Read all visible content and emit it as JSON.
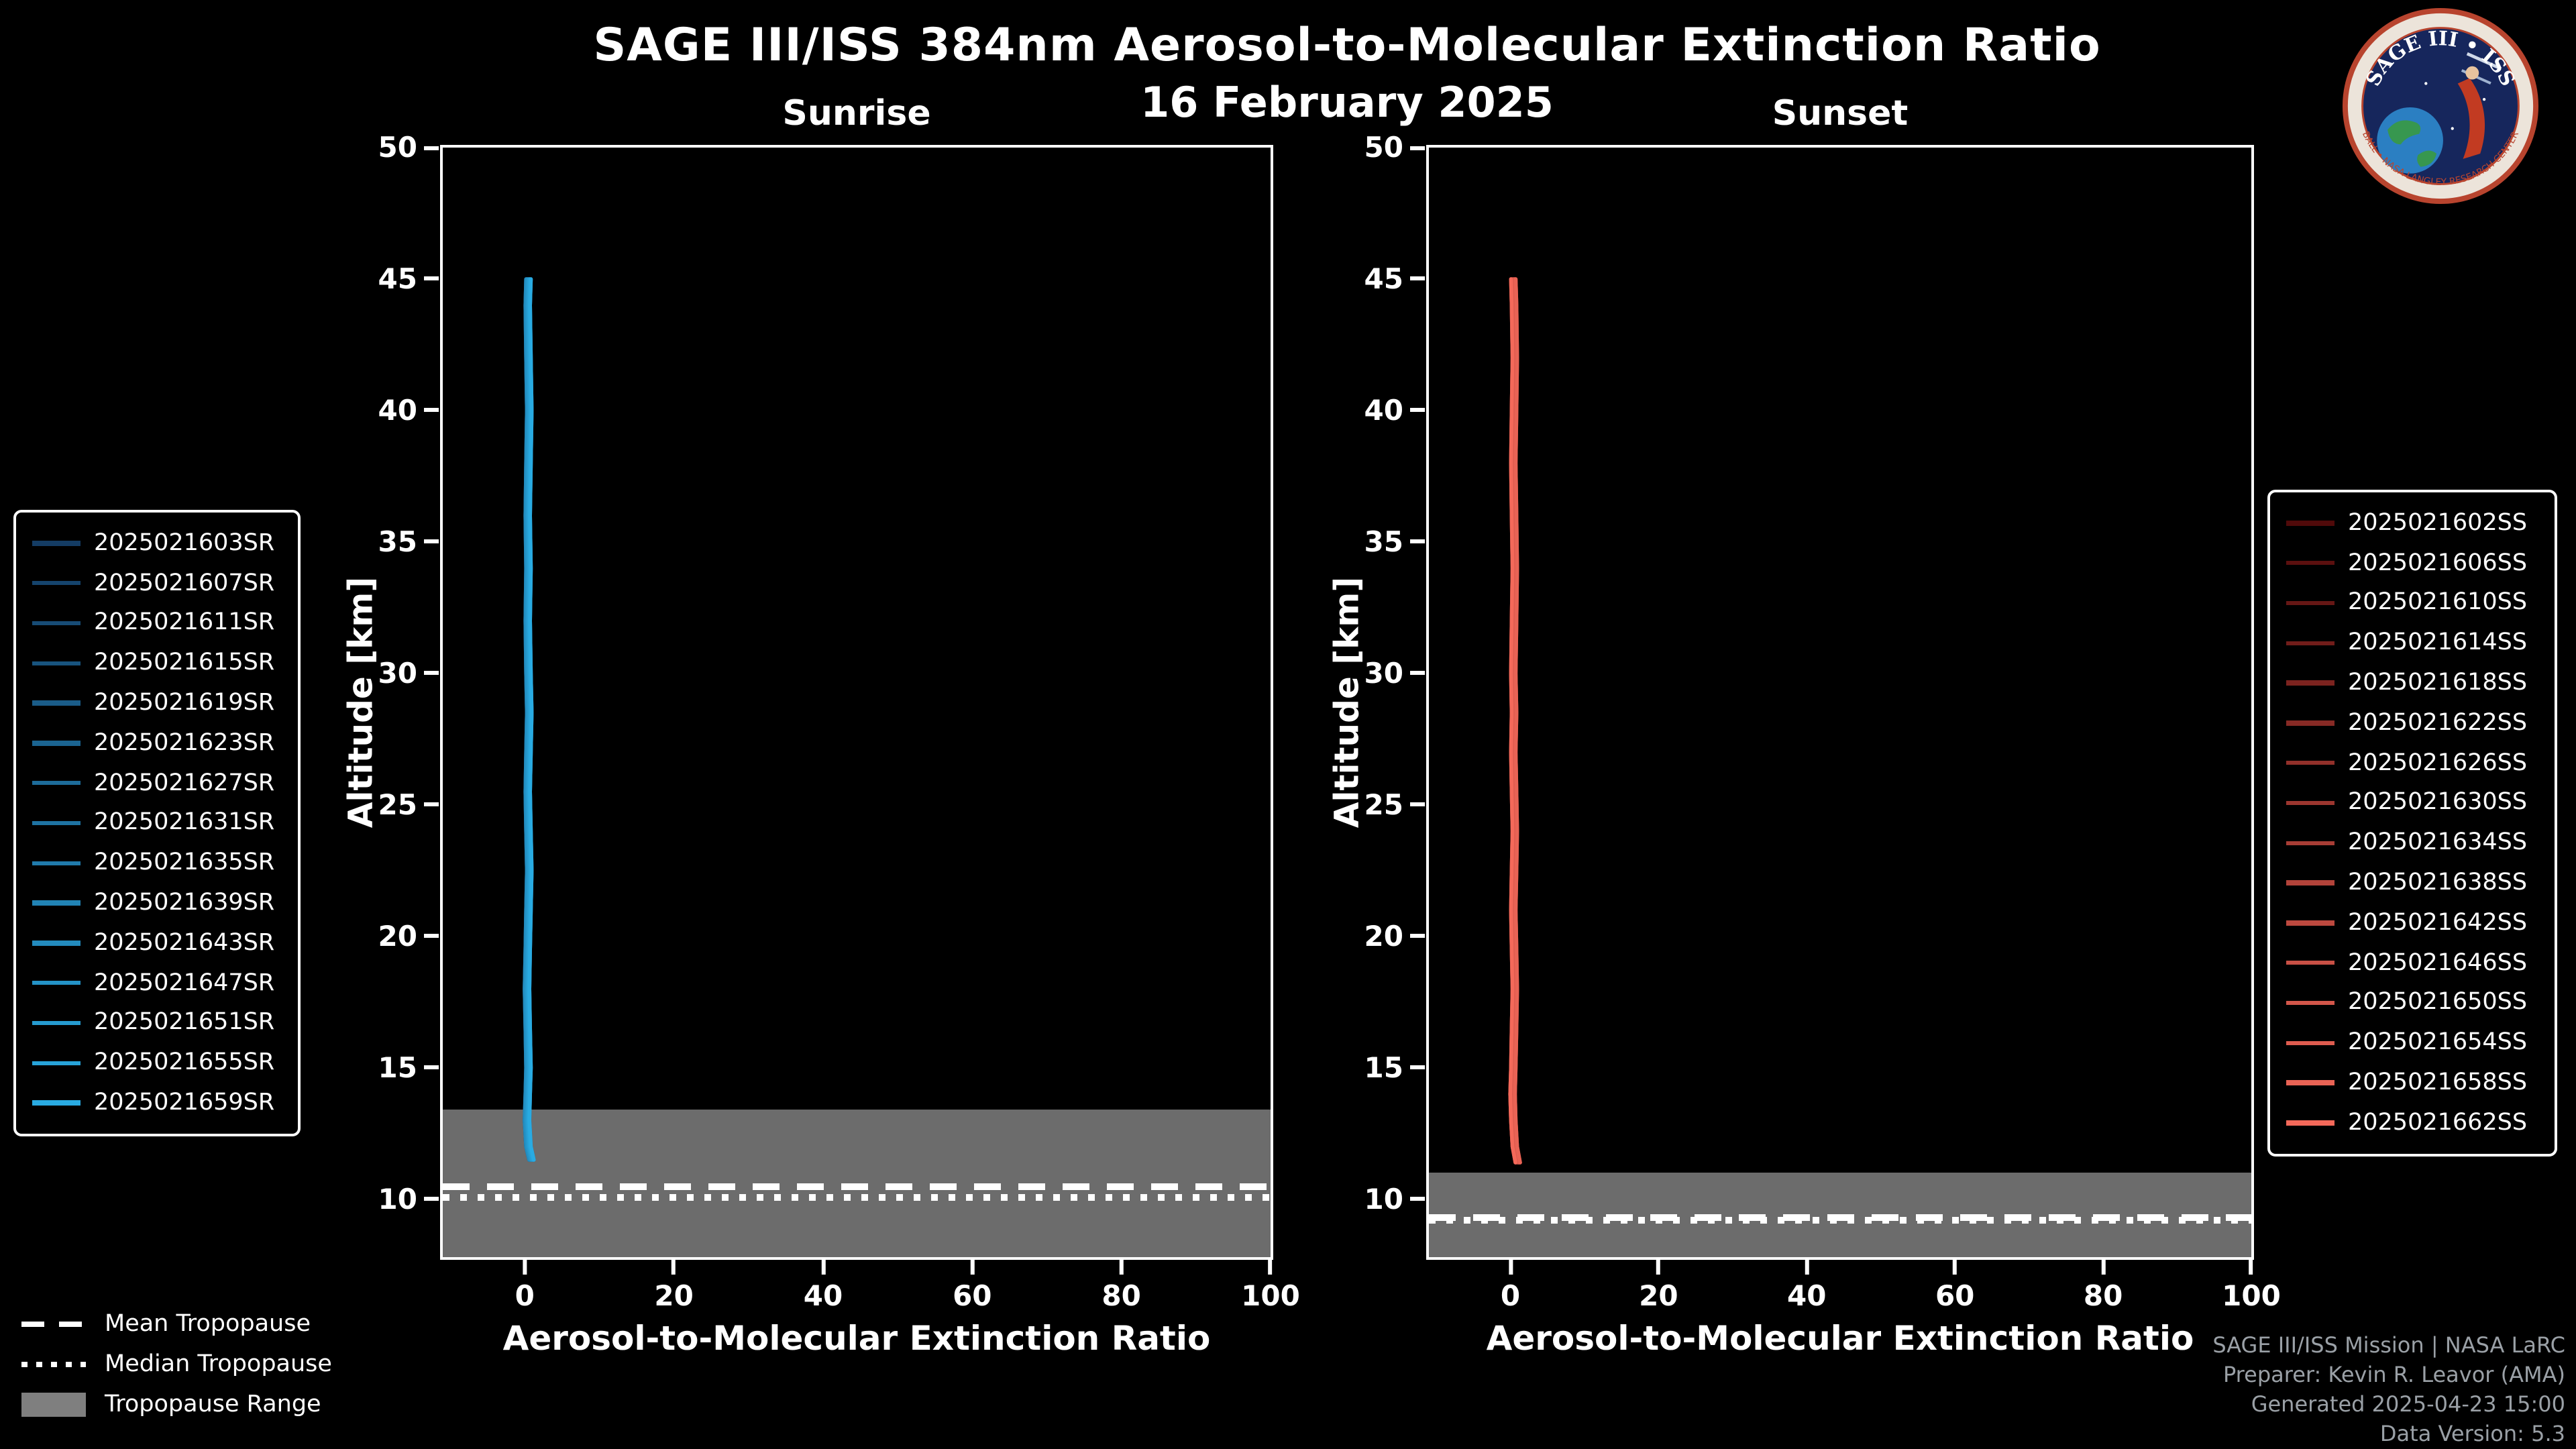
{
  "header": {
    "title": "SAGE III/ISS 384nm Aerosol-to-Molecular Extinction Ratio",
    "date": "16 February 2025"
  },
  "logo": {
    "title": "SAGE III • ISS",
    "ring_text": "BALL • NASA LANGLEY RESEARCH CENTER"
  },
  "colors": {
    "background": "#000000",
    "foreground": "#ffffff",
    "sunrise_line": "#29abe2",
    "sunset_line": "#f4695a",
    "tropopause_band": "#7f7f7f",
    "annotation_text": "#9aa0a6"
  },
  "tropopause_legend": {
    "mean_label": "Mean Tropopause",
    "median_label": "Median Tropopause",
    "range_label": "Tropopause Range"
  },
  "annotations": [
    "SAGE III/ISS Mission | NASA LaRC",
    "Preparer: Kevin R. Leavor (AMA)",
    "Generated 2025-04-23 15:00",
    "Data Version: 5.3"
  ],
  "chart_data": [
    {
      "type": "line",
      "title": "Sunrise",
      "xlabel": "Aerosol-to-Molecular Extinction Ratio",
      "ylabel": "Altitude [km]",
      "xlim": [
        -11,
        100
      ],
      "ylim": [
        7.8,
        50
      ],
      "xticks": [
        0,
        20,
        40,
        60,
        80,
        100
      ],
      "yticks": [
        10,
        15,
        20,
        25,
        30,
        35,
        40,
        45,
        50
      ],
      "grid": false,
      "legend_position": "outside-left",
      "events": [
        {
          "id": "2025021603SR",
          "color": "#143c64"
        },
        {
          "id": "2025021607SR",
          "color": "#15446d"
        },
        {
          "id": "2025021611SR",
          "color": "#174c76"
        },
        {
          "id": "2025021615SR",
          "color": "#18547f"
        },
        {
          "id": "2025021619SR",
          "color": "#1a5c88"
        },
        {
          "id": "2025021623SR",
          "color": "#1b6491"
        },
        {
          "id": "2025021627SR",
          "color": "#1d6c9a"
        },
        {
          "id": "2025021631SR",
          "color": "#1e73a3"
        },
        {
          "id": "2025021635SR",
          "color": "#207bac"
        },
        {
          "id": "2025021639SR",
          "color": "#2183b5"
        },
        {
          "id": "2025021643SR",
          "color": "#238bbe"
        },
        {
          "id": "2025021647SR",
          "color": "#2493c7"
        },
        {
          "id": "2025021651SR",
          "color": "#269bd0"
        },
        {
          "id": "2025021655SR",
          "color": "#27a3d9"
        },
        {
          "id": "2025021659SR",
          "color": "#29abe2"
        }
      ],
      "profile": {
        "altitude_km": [
          11.5,
          12,
          13,
          14,
          15,
          16.5,
          18,
          19.5,
          21,
          22.5,
          24,
          25.5,
          27,
          28.5,
          30,
          32,
          34,
          36,
          38,
          40,
          42,
          44,
          45
        ],
        "ratio": [
          0.9,
          0.5,
          0.3,
          0.4,
          0.5,
          0.4,
          0.3,
          0.4,
          0.5,
          0.6,
          0.5,
          0.4,
          0.5,
          0.6,
          0.5,
          0.4,
          0.5,
          0.4,
          0.5,
          0.6,
          0.5,
          0.4,
          0.5
        ]
      },
      "tropopause": {
        "mean_km": 10.5,
        "median_km": 10.05,
        "range_km": [
          7.8,
          13.4
        ]
      }
    },
    {
      "type": "line",
      "title": "Sunset",
      "xlabel": "Aerosol-to-Molecular Extinction Ratio",
      "ylabel": "Altitude [km]",
      "xlim": [
        -11,
        100
      ],
      "ylim": [
        7.8,
        50
      ],
      "xticks": [
        0,
        20,
        40,
        60,
        80,
        100
      ],
      "yticks": [
        10,
        15,
        20,
        25,
        30,
        35,
        40,
        45,
        50
      ],
      "grid": false,
      "legend_position": "outside-right",
      "events": [
        {
          "id": "2025021602SS",
          "color": "#500a0a"
        },
        {
          "id": "2025021606SS",
          "color": "#5b100f"
        },
        {
          "id": "2025021610SS",
          "color": "#661715"
        },
        {
          "id": "2025021614SS",
          "color": "#711d1a"
        },
        {
          "id": "2025021618SS",
          "color": "#7c231f"
        },
        {
          "id": "2025021622SS",
          "color": "#872a25"
        },
        {
          "id": "2025021626SS",
          "color": "#92302a"
        },
        {
          "id": "2025021630SS",
          "color": "#9c362f"
        },
        {
          "id": "2025021634SS",
          "color": "#a73d35"
        },
        {
          "id": "2025021638SS",
          "color": "#b2433a"
        },
        {
          "id": "2025021642SS",
          "color": "#bd493f"
        },
        {
          "id": "2025021646SS",
          "color": "#c85045"
        },
        {
          "id": "2025021650SS",
          "color": "#d3564a"
        },
        {
          "id": "2025021654SS",
          "color": "#de5c4f"
        },
        {
          "id": "2025021658SS",
          "color": "#e96355"
        },
        {
          "id": "2025021662SS",
          "color": "#f4695a"
        }
      ],
      "profile": {
        "altitude_km": [
          11.4,
          12,
          13,
          14,
          15,
          16.5,
          18,
          19.5,
          21,
          22.5,
          24,
          25.5,
          27,
          28.5,
          30,
          32,
          34,
          36,
          38,
          40,
          42,
          44,
          45
        ],
        "ratio": [
          1.0,
          0.6,
          0.4,
          0.3,
          0.4,
          0.5,
          0.6,
          0.5,
          0.4,
          0.5,
          0.6,
          0.5,
          0.4,
          0.5,
          0.4,
          0.5,
          0.6,
          0.5,
          0.4,
          0.5,
          0.6,
          0.5,
          0.4
        ]
      },
      "tropopause": {
        "mean_km": 9.3,
        "median_km": 9.2,
        "range_km": [
          7.8,
          11.0
        ]
      }
    }
  ]
}
